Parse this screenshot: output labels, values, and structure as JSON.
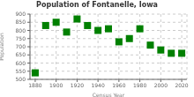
{
  "chart_data": {
    "type": "scatter",
    "title": "Population of Fontanelle, Iowa",
    "xlabel": "Census Year",
    "ylabel": "Population",
    "x": [
      1880,
      1890,
      1900,
      1910,
      1920,
      1930,
      1940,
      1950,
      1960,
      1970,
      1980,
      1990,
      2000,
      2010,
      2020
    ],
    "values": [
      540,
      830,
      850,
      790,
      870,
      830,
      800,
      810,
      730,
      750,
      810,
      710,
      680,
      660,
      660
    ],
    "color": "#008000",
    "marker": "square",
    "xlim": [
      1875,
      2025
    ],
    "ylim": [
      500,
      900
    ],
    "xticks": [
      1880,
      1900,
      1920,
      1940,
      1960,
      1980,
      2000,
      2020
    ],
    "yticks": [
      500,
      550,
      600,
      650,
      700,
      750,
      800,
      850,
      900
    ],
    "grid": true
  }
}
